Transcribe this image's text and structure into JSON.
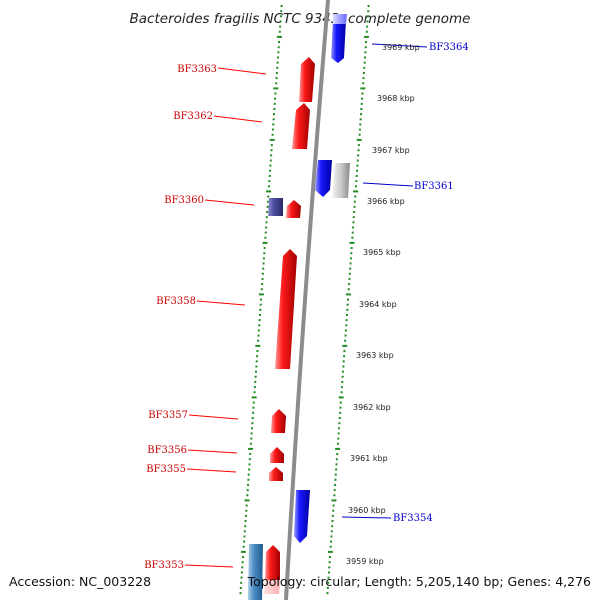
{
  "title": "Bacteroides fragilis NCTC 9343, complete genome",
  "footer": {
    "accession": "Accession: NC_003228",
    "topology": "Topology: circular; Length: 5,205,140 bp; Genes: 4,276"
  },
  "colors": {
    "forward_gene": "#ff0000",
    "reverse_gene": "#0000ff",
    "tick": "#228b22",
    "backbone": "#8c8c8c"
  },
  "kbp_labels": [
    "3969 kbp",
    "3968 kbp",
    "3967 kbp",
    "3966 kbp",
    "3965 kbp",
    "3964 kbp",
    "3963 kbp",
    "3962 kbp",
    "3961 kbp",
    "3960 kbp",
    "3959 kbp"
  ],
  "genes": [
    {
      "id": "g3364",
      "label": "BF3364",
      "strand": "reverse"
    },
    {
      "id": "g3363",
      "label": "BF3363",
      "strand": "forward"
    },
    {
      "id": "g3362",
      "label": "BF3362",
      "strand": "forward"
    },
    {
      "id": "g3361",
      "label": "BF3361",
      "strand": "reverse"
    },
    {
      "id": "g3360",
      "label": "BF3360",
      "strand": "forward"
    },
    {
      "id": "g3358",
      "label": "BF3358",
      "strand": "forward"
    },
    {
      "id": "g3357",
      "label": "BF3357",
      "strand": "forward"
    },
    {
      "id": "g3356",
      "label": "BF3356",
      "strand": "forward"
    },
    {
      "id": "g3355",
      "label": "BF3355",
      "strand": "forward"
    },
    {
      "id": "g3354",
      "label": "BF3354",
      "strand": "reverse"
    },
    {
      "id": "g3353",
      "label": "BF3353",
      "strand": "forward"
    }
  ]
}
